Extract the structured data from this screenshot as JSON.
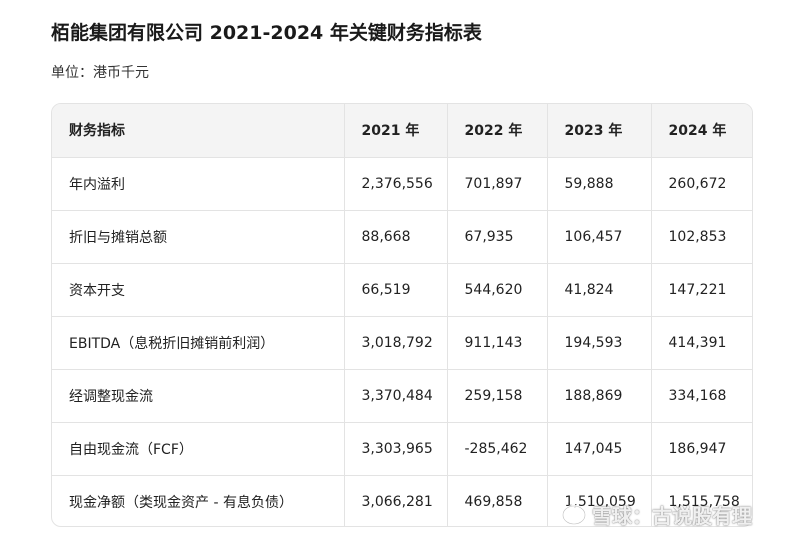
{
  "document": {
    "title": "栢能集团有限公司 2021-2024 年关键财务指标表",
    "unit": "单位：港币千元"
  },
  "table": {
    "headers": [
      "财务指标",
      "2021 年",
      "2022 年",
      "2023 年",
      "2024 年"
    ],
    "rows": [
      [
        "年内溢利",
        "2,376,556",
        "701,897",
        "59,888",
        "260,672"
      ],
      [
        "折旧与摊销总额",
        "88,668",
        "67,935",
        "106,457",
        "102,853"
      ],
      [
        "资本开支",
        "66,519",
        "544,620",
        "41,824",
        "147,221"
      ],
      [
        "EBITDA（息税折旧摊销前利润）",
        "3,018,792",
        "911,143",
        "194,593",
        "414,391"
      ],
      [
        "经调整现金流",
        "3,370,484",
        "259,158",
        "188,869",
        "334,168"
      ],
      [
        "自由现金流（FCF）",
        "3,303,965",
        "-285,462",
        "147,045",
        "186,947"
      ],
      [
        "现金净额（类现金资产 - 有息负债）",
        "3,066,281",
        "469,858",
        "1,510,059",
        "1,515,758"
      ]
    ]
  },
  "watermark": {
    "text": "雪球：古说股有理",
    "icon": "snowball-logo-icon"
  }
}
